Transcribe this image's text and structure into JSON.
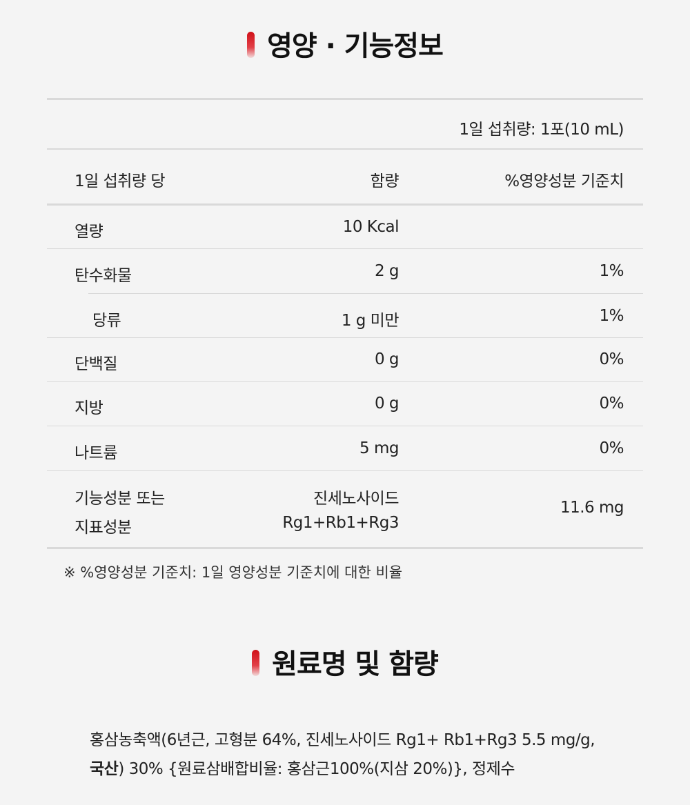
{
  "section1": {
    "title": "영양 · 기능정보"
  },
  "table": {
    "serving": "1일 섭취량: 1포(10 mL)",
    "headers": [
      "1일 섭취량 당",
      "함량",
      "%영양성분 기준치"
    ],
    "rows": [
      {
        "name": "열량",
        "amount": "10 Kcal",
        "percent": ""
      },
      {
        "name": "탄수화물",
        "amount": "2 g",
        "percent": "1%"
      },
      {
        "name": "당류",
        "amount": "1 g 미만",
        "percent": "1%"
      },
      {
        "name": "단백질",
        "amount": "0 g",
        "percent": "0%"
      },
      {
        "name": "지방",
        "amount": "0 g",
        "percent": "0%"
      },
      {
        "name": "나트륨",
        "amount": "5 mg",
        "percent": "0%"
      }
    ],
    "functional": {
      "name_line1": "기능성분 또는",
      "name_line2": "지표성분",
      "amount_line1": "진세노사이드",
      "amount_line2": "Rg1+Rb1+Rg3",
      "percent": "11.6 mg"
    },
    "note": "※ %영양성분 기준치: 1일 영양성분 기준치에 대한 비율"
  },
  "section2": {
    "title": "원료명 및 함량"
  },
  "ingredients": {
    "line1": "홍삼농축액(6년근, 고형분 64%, 진세노사이드 Rg1+ Rb1+Rg3 5.5 mg/g,",
    "bold": "국산",
    "line2_rest": ") 30% {원료삼배합비율: 홍삼근100%(지삼 20%)}, 정제수"
  },
  "colors": {
    "accent": "#d01018",
    "background": "#f4f4f4",
    "divider": "#d9d9d9"
  }
}
